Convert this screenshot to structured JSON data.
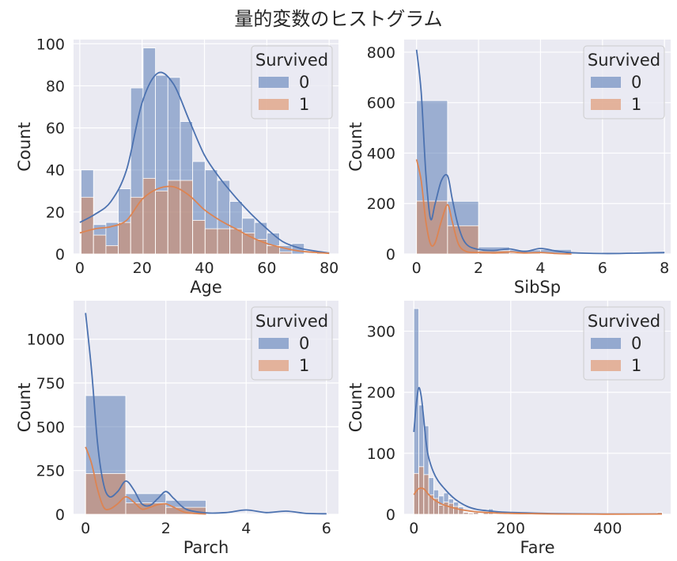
{
  "figure": {
    "title": "量的変数のヒストグラム"
  },
  "colors": {
    "background": "#eaeaf2",
    "grid": "#ffffff",
    "series0_fill": "#4c72b0",
    "series1_fill": "#dd8452",
    "series0_line": "#4c72b0",
    "series1_line": "#dd8452"
  },
  "chart_data": [
    {
      "type": "bar",
      "stacked": true,
      "xlabel": "Age",
      "ylabel": "Count",
      "xlim": [
        -2,
        83
      ],
      "ylim": [
        0,
        102
      ],
      "xticks": [
        0,
        20,
        40,
        60,
        80
      ],
      "yticks": [
        0,
        20,
        40,
        60,
        80,
        100
      ],
      "legend": {
        "title": "Survived",
        "placement": "top-right",
        "entries": [
          "0",
          "1"
        ]
      },
      "bin_edges": [
        0.42,
        4.4,
        8.38,
        12.35,
        16.33,
        20.31,
        24.29,
        28.26,
        32.24,
        36.22,
        40.2,
        44.18,
        48.15,
        52.13,
        56.11,
        60.09,
        64.07,
        68.04,
        72.02,
        76.0,
        79.98
      ],
      "series": [
        {
          "name": "0",
          "stacked_totals": [
            40,
            14,
            15,
            31,
            79,
            98,
            85,
            84,
            63,
            44,
            40,
            35,
            25,
            17,
            15,
            10,
            4,
            5,
            0,
            1
          ]
        },
        {
          "name": "1",
          "values": [
            27,
            9,
            4,
            15,
            27,
            36,
            30,
            35,
            35,
            16,
            12,
            12,
            12,
            10,
            7,
            4,
            1,
            0,
            0,
            1
          ]
        }
      ],
      "kde": [
        {
          "name": "0",
          "x": [
            0,
            5,
            10,
            15,
            20,
            25,
            30,
            35,
            40,
            45,
            50,
            55,
            60,
            65,
            70,
            75,
            80
          ],
          "y": [
            15,
            19,
            25,
            40,
            72,
            86,
            81,
            64,
            47,
            36,
            27,
            19,
            12,
            6,
            3,
            1.5,
            0.5
          ]
        },
        {
          "name": "1",
          "x": [
            0,
            5,
            10,
            15,
            20,
            25,
            30,
            35,
            40,
            45,
            50,
            55,
            60,
            65,
            70,
            75,
            80
          ],
          "y": [
            10,
            12,
            13,
            16,
            26,
            31,
            32,
            28,
            21,
            16,
            12,
            8,
            5,
            3,
            1.5,
            0.8,
            0.3
          ]
        }
      ]
    },
    {
      "type": "bar",
      "stacked": true,
      "xlabel": "SibSp",
      "ylabel": "Count",
      "xlim": [
        -0.4,
        8.2
      ],
      "ylim": [
        0,
        850
      ],
      "xticks": [
        0,
        2,
        4,
        6,
        8
      ],
      "yticks": [
        0,
        200,
        400,
        600,
        800
      ],
      "legend": {
        "title": "Survived",
        "placement": "top-right",
        "entries": [
          "0",
          "1"
        ]
      },
      "bin_edges": [
        0,
        1,
        2,
        3,
        4,
        5,
        6,
        7,
        8
      ],
      "series": [
        {
          "name": "0",
          "stacked_totals": [
            608,
            209,
            28,
            16,
            18,
            5,
            0,
            7
          ]
        },
        {
          "name": "1",
          "values": [
            210,
            112,
            13,
            4,
            3,
            0,
            0,
            0
          ]
        }
      ],
      "kde": [
        {
          "name": "0",
          "x": [
            0,
            0.15,
            0.3,
            0.45,
            0.6,
            0.8,
            1.0,
            1.15,
            1.35,
            1.6,
            2.0,
            2.5,
            3.0,
            3.5,
            4.0,
            4.5,
            5.0,
            6.0,
            7.0,
            8.0
          ],
          "y": [
            810,
            640,
            320,
            140,
            200,
            290,
            310,
            220,
            110,
            40,
            18,
            14,
            20,
            10,
            22,
            12,
            5,
            2,
            3,
            6
          ]
        },
        {
          "name": "1",
          "x": [
            0,
            0.15,
            0.3,
            0.45,
            0.6,
            0.8,
            1.0,
            1.15,
            1.35,
            1.6,
            2.0,
            2.5,
            3.0,
            3.5,
            4.0,
            4.5,
            5.0
          ],
          "y": [
            375,
            290,
            130,
            40,
            45,
            130,
            195,
            130,
            40,
            10,
            6,
            4,
            8,
            4,
            6,
            2,
            0
          ]
        }
      ]
    },
    {
      "type": "bar",
      "stacked": true,
      "xlabel": "Parch",
      "ylabel": "Count",
      "xlim": [
        -0.3,
        6.3
      ],
      "ylim": [
        0,
        1220
      ],
      "xticks": [
        0,
        2,
        4,
        6
      ],
      "yticks": [
        0,
        250,
        500,
        750,
        1000
      ],
      "legend": {
        "title": "Survived",
        "placement": "top-right",
        "entries": [
          "0",
          "1"
        ]
      },
      "bin_edges": [
        0,
        1,
        2,
        3,
        4,
        5,
        6
      ],
      "series": [
        {
          "name": "0",
          "stacked_totals": [
            678,
            118,
            80,
            5,
            4,
            1
          ]
        },
        {
          "name": "1",
          "values": [
            233,
            65,
            40,
            3,
            0,
            1
          ]
        }
      ],
      "kde": [
        {
          "name": "0",
          "x": [
            0,
            0.15,
            0.3,
            0.45,
            0.6,
            0.8,
            1.0,
            1.2,
            1.4,
            1.6,
            1.8,
            2.0,
            2.2,
            2.5,
            3.0,
            3.5,
            4.0,
            4.5,
            5.0,
            5.5,
            6.0
          ],
          "y": [
            1150,
            820,
            400,
            170,
            100,
            130,
            190,
            140,
            60,
            50,
            90,
            130,
            90,
            30,
            8,
            10,
            25,
            10,
            18,
            5,
            3
          ]
        },
        {
          "name": "1",
          "x": [
            0,
            0.15,
            0.3,
            0.45,
            0.6,
            0.8,
            1.0,
            1.2,
            1.4,
            1.6,
            1.8,
            2.0,
            2.2,
            2.5,
            3.0
          ],
          "y": [
            385,
            290,
            140,
            40,
            30,
            60,
            100,
            70,
            30,
            40,
            55,
            60,
            40,
            10,
            2
          ]
        }
      ]
    },
    {
      "type": "bar",
      "stacked": true,
      "xlabel": "Fare",
      "ylabel": "Count",
      "xlim": [
        -20,
        530
      ],
      "ylim": [
        0,
        350
      ],
      "xticks": [
        0,
        200,
        400
      ],
      "yticks": [
        0,
        100,
        200,
        300
      ],
      "legend": {
        "title": "Survived",
        "placement": "top-right",
        "entries": [
          "0",
          "1"
        ]
      },
      "bin_edges": [
        0,
        10.25,
        20.5,
        30.75,
        41.0,
        51.25,
        61.5,
        71.75,
        82.0,
        92.25,
        102.5,
        112.75,
        123.0,
        133.25,
        143.5,
        153.75,
        164.0,
        174.25,
        184.5,
        194.75,
        205.0,
        215.25,
        225.5,
        235.75,
        246.0,
        256.25,
        266.5,
        276.75,
        287.0,
        297.25,
        307.5,
        317.75,
        328.0,
        338.25,
        348.5,
        358.75,
        369.0,
        379.25,
        389.5,
        399.75,
        410.0,
        420.25,
        430.5,
        440.75,
        451.0,
        461.25,
        471.5,
        481.75,
        492.0,
        502.25,
        512.5
      ],
      "series": [
        {
          "name": "0",
          "stacked_totals": [
            337,
            179,
            145,
            60,
            40,
            30,
            35,
            25,
            20,
            12,
            4,
            3,
            5,
            2,
            4,
            9,
            2,
            1,
            0,
            0,
            1,
            3,
            2,
            1,
            0,
            1,
            2,
            0,
            0,
            0,
            0,
            0,
            0,
            0,
            0,
            0,
            0,
            0,
            0,
            0,
            0,
            0,
            0,
            0,
            0,
            0,
            0,
            0,
            0,
            3
          ]
        },
        {
          "name": "1",
          "values": [
            67,
            78,
            65,
            32,
            26,
            15,
            20,
            18,
            13,
            8,
            3,
            2,
            3,
            1,
            3,
            5,
            1,
            1,
            0,
            0,
            1,
            2,
            1,
            1,
            0,
            0,
            1,
            0,
            0,
            0,
            0,
            0,
            0,
            0,
            0,
            0,
            0,
            0,
            0,
            0,
            0,
            0,
            0,
            0,
            0,
            0,
            0,
            0,
            0,
            3
          ]
        }
      ],
      "kde": [
        {
          "name": "0",
          "x": [
            0,
            5,
            10,
            15,
            20,
            25,
            30,
            40,
            50,
            60,
            75,
            90,
            110,
            130,
            150,
            175,
            200,
            250,
            300,
            400,
            512
          ],
          "y": [
            135,
            180,
            207,
            195,
            160,
            120,
            95,
            70,
            55,
            45,
            32,
            22,
            13,
            8,
            6,
            4,
            3,
            2,
            1,
            0.5,
            0.5
          ]
        },
        {
          "name": "1",
          "x": [
            0,
            5,
            10,
            15,
            20,
            25,
            30,
            40,
            50,
            60,
            75,
            90,
            110,
            130,
            150,
            175,
            200,
            250,
            300,
            400,
            512
          ],
          "y": [
            32,
            38,
            42,
            43,
            42,
            38,
            33,
            25,
            20,
            16,
            12,
            9,
            6,
            4,
            3,
            2,
            1.5,
            1,
            0.5,
            0.3,
            0.5
          ]
        }
      ]
    }
  ]
}
